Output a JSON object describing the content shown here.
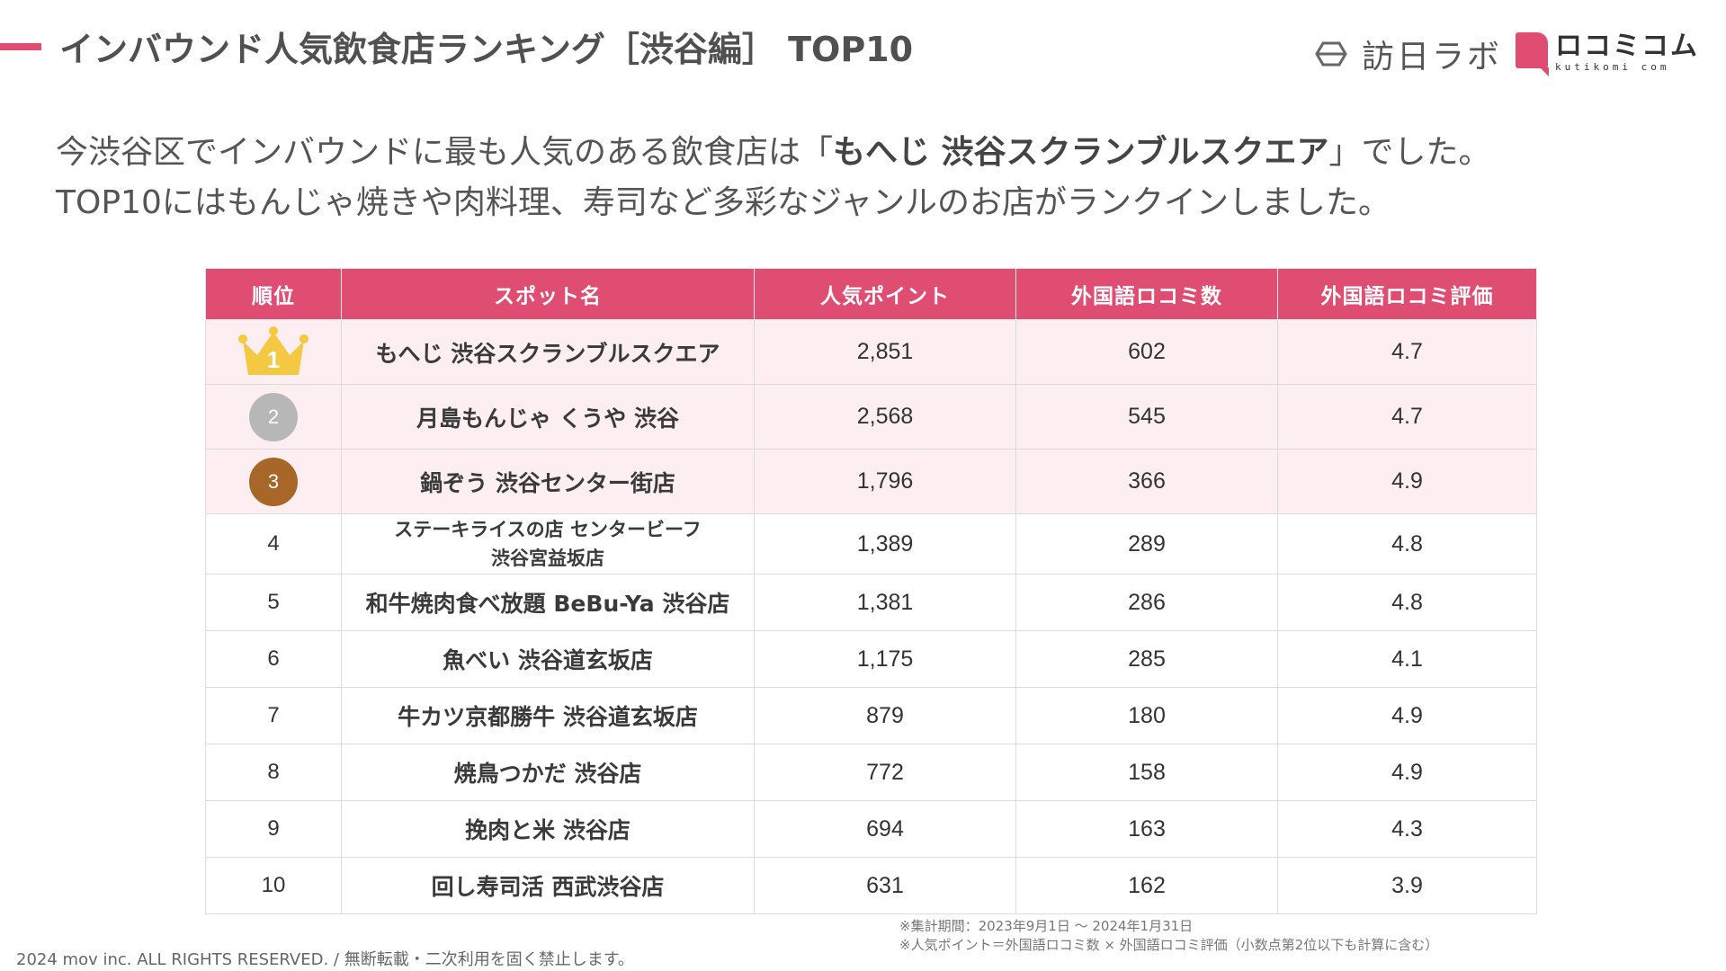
{
  "header": {
    "title": "インバウンド人気飲食店ランキング［渋谷編］ TOP10",
    "logo_homonichi": "訪日ラボ",
    "logo_kuchikomi_jp": "ロコミコム",
    "logo_kuchikomi_en": "kutikomi com"
  },
  "intro": {
    "line1_before": "今渋谷区でインバウンドに最も人気のある飲食店は「",
    "line1_bold": "もへじ 渋谷スクランブルスクエア",
    "line1_after": "」でした。",
    "line2": "TOP10にはもんじゃ焼きや肉料理、寿司など多彩なジャンルのお店がランクインしました。"
  },
  "table": {
    "headers": [
      "順位",
      "スポット名",
      "人気ポイント",
      "外国語ロコミ数",
      "外国語ロコミ評価"
    ],
    "rows": [
      {
        "rank": "1",
        "name": "もへじ 渋谷スクランブルスクエア",
        "points": "2,851",
        "reviews": "602",
        "rating": "4.7"
      },
      {
        "rank": "2",
        "name": "月島もんじゃ くうや 渋谷",
        "points": "2,568",
        "reviews": "545",
        "rating": "4.7"
      },
      {
        "rank": "3",
        "name": "鍋ぞう 渋谷センター街店",
        "points": "1,796",
        "reviews": "366",
        "rating": "4.9"
      },
      {
        "rank": "4",
        "name_line1": "ステーキライスの店 センタービーフ",
        "name_line2": "渋谷宮益坂店",
        "points": "1,389",
        "reviews": "289",
        "rating": "4.8"
      },
      {
        "rank": "5",
        "name": "和牛焼肉食べ放題 BeBu-Ya 渋谷店",
        "points": "1,381",
        "reviews": "286",
        "rating": "4.8"
      },
      {
        "rank": "6",
        "name": "魚べい 渋谷道玄坂店",
        "points": "1,175",
        "reviews": "285",
        "rating": "4.1"
      },
      {
        "rank": "7",
        "name": "牛カツ京都勝牛 渋谷道玄坂店",
        "points": "879",
        "reviews": "180",
        "rating": "4.9"
      },
      {
        "rank": "8",
        "name": "焼鳥つかだ 渋谷店",
        "points": "772",
        "reviews": "158",
        "rating": "4.9"
      },
      {
        "rank": "9",
        "name": "挽肉と米 渋谷店",
        "points": "694",
        "reviews": "163",
        "rating": "4.3"
      },
      {
        "rank": "10",
        "name": "回し寿司活 西武渋谷店",
        "points": "631",
        "reviews": "162",
        "rating": "3.9"
      }
    ]
  },
  "notes": {
    "period": "※集計期間：2023年9月1日 〜 2024年1月31日",
    "formula": "※人気ポイント＝外国語ロコミ数 × 外国語ロコミ評価（小数点第2位以下も計算に含む）"
  },
  "footer": {
    "copyright": "2024 mov inc. ALL RIGHTS RESERVED. / 無断転載・二次利用を固く禁止します。"
  },
  "colors": {
    "accent": "#e04d72",
    "highlight_row": "#fdeef2",
    "gold": "#f5c842",
    "silver": "#b7b7b7",
    "bronze": "#a86628"
  }
}
